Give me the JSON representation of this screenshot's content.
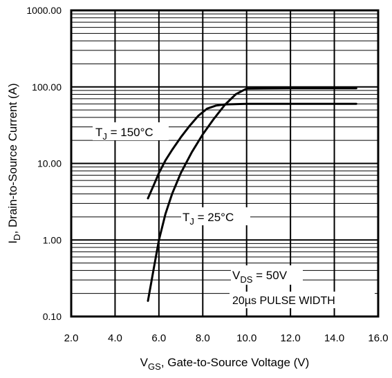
{
  "chart_data": {
    "type": "line",
    "title": "",
    "xlabel": {
      "main": "V",
      "sub": "GS",
      "rest": ", Gate-to-Source Voltage (V)"
    },
    "ylabel": {
      "main": "I",
      "sub": "D",
      "rest": ", Drain-to-Source Current  (A)"
    },
    "xlim": [
      2.0,
      16.0
    ],
    "ylim": [
      0.1,
      1000
    ],
    "y_scale": "log",
    "grid": true,
    "x_ticks": [
      {
        "value": 2,
        "label": "2.0"
      },
      {
        "value": 4,
        "label": "4.0"
      },
      {
        "value": 6,
        "label": "6.0"
      },
      {
        "value": 8,
        "label": "8.0"
      },
      {
        "value": 10,
        "label": "10.0"
      },
      {
        "value": 12,
        "label": "12.0"
      },
      {
        "value": 14,
        "label": "14.0"
      },
      {
        "value": 16,
        "label": "16.0"
      }
    ],
    "y_ticks": [
      {
        "value": 0.1,
        "label": "0.10"
      },
      {
        "value": 1,
        "label": "1.00"
      },
      {
        "value": 10,
        "label": "10.00"
      },
      {
        "value": 100,
        "label": "100.00"
      },
      {
        "value": 1000,
        "label": "1000.00"
      }
    ],
    "series": [
      {
        "label": {
          "main": "T",
          "sub": "J",
          "rest": " = 150°C"
        },
        "x": [
          5.5,
          5.8,
          6.0,
          6.3,
          6.6,
          7.0,
          7.4,
          7.8,
          8.2,
          8.6,
          9.0,
          10.0,
          12.0,
          15.0
        ],
        "y": [
          3.5,
          5.5,
          7.5,
          11,
          15,
          22,
          31,
          42,
          52,
          57,
          59,
          60,
          60,
          60
        ]
      },
      {
        "label": {
          "main": "T",
          "sub": "J",
          "rest": " = 25°C"
        },
        "x": [
          5.5,
          5.75,
          6.0,
          6.3,
          6.6,
          7.0,
          7.5,
          8.0,
          8.5,
          9.0,
          9.5,
          10.0,
          12.0,
          15.0
        ],
        "y": [
          0.16,
          0.4,
          1.0,
          2.2,
          4.0,
          7.5,
          14,
          24,
          38,
          58,
          80,
          95,
          96,
          96
        ]
      }
    ],
    "annotations": [
      {
        "main": "V",
        "sub": "DS",
        "rest": " = 50V"
      },
      {
        "main": "20µs PULSE WIDTH",
        "sub": "",
        "rest": ""
      }
    ]
  }
}
